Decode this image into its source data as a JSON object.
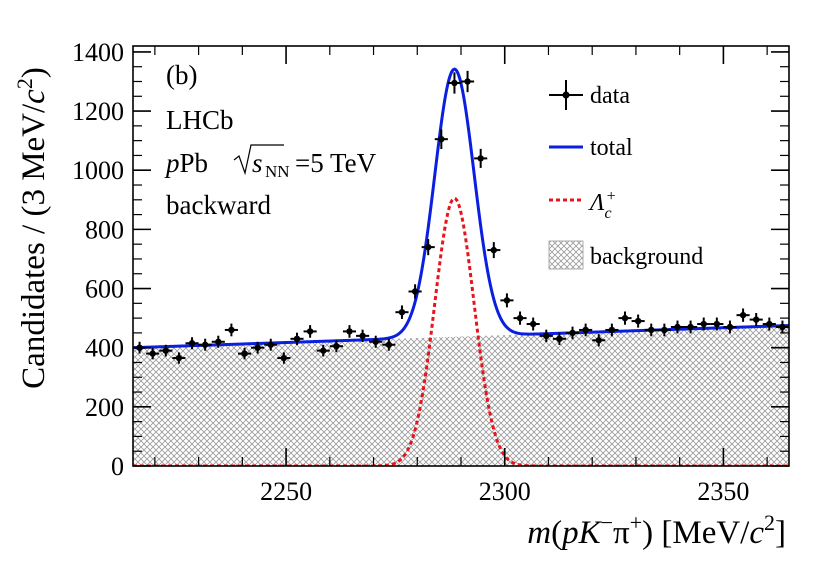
{
  "chart_data": {
    "type": "scatter",
    "panel_label": "(b)",
    "experiment": "LHCb",
    "collision": {
      "p": "p",
      "Pb": "Pb",
      "sqrt_s": "s",
      "sub": "NN",
      "energy": "=5 TeV"
    },
    "direction": "backward",
    "xlabel": "m(pK−π+) [MeV/c2]",
    "ylabel": "Candidates / (3 MeV/c2)",
    "xlim": [
      2215,
      2365
    ],
    "ylim": [
      0,
      1420
    ],
    "xticks": [
      2250,
      2300,
      2350
    ],
    "xtick_labels": [
      "2250",
      "2300",
      "2350"
    ],
    "yticks": [
      0,
      200,
      400,
      600,
      800,
      1000,
      1200,
      1400
    ],
    "ytick_labels": [
      "0",
      "200",
      "400",
      "600",
      "800",
      "1000",
      "1200",
      "1400"
    ],
    "legend": [
      {
        "key": "data",
        "label": "data"
      },
      {
        "key": "total",
        "label": "total"
      },
      {
        "key": "signal",
        "label": "Λc+"
      },
      {
        "key": "background",
        "label": "background"
      }
    ],
    "bin_width": 3,
    "series": [
      {
        "name": "data",
        "x": [
          2216.5,
          2219.5,
          2222.5,
          2225.5,
          2228.5,
          2231.5,
          2234.5,
          2237.5,
          2240.5,
          2243.5,
          2246.5,
          2249.5,
          2252.5,
          2255.5,
          2258.5,
          2261.5,
          2264.5,
          2267.5,
          2270.5,
          2273.5,
          2276.5,
          2279.5,
          2282.5,
          2285.5,
          2288.5,
          2291.5,
          2294.5,
          2297.5,
          2300.5,
          2303.5,
          2306.5,
          2309.5,
          2312.5,
          2315.5,
          2318.5,
          2321.5,
          2324.5,
          2327.5,
          2330.5,
          2333.5,
          2336.5,
          2339.5,
          2342.5,
          2345.5,
          2348.5,
          2351.5,
          2354.5,
          2357.5,
          2360.5,
          2363.5
        ],
        "y": [
          400,
          380,
          390,
          365,
          415,
          410,
          420,
          460,
          380,
          400,
          410,
          365,
          430,
          455,
          390,
          405,
          455,
          440,
          420,
          410,
          520,
          590,
          740,
          1105,
          1295,
          1300,
          1040,
          730,
          560,
          500,
          480,
          440,
          430,
          450,
          460,
          425,
          460,
          500,
          490,
          460,
          460,
          470,
          470,
          480,
          480,
          470,
          510,
          495,
          480,
          470
        ]
      },
      {
        "name": "total",
        "background_level": [
          400,
          475
        ],
        "peak_mean": 2288.5,
        "peak_sigma": 4.5,
        "peak_amplitude": 905
      },
      {
        "name": "signal",
        "mean": 2288.5,
        "sigma": 4.5,
        "amplitude": 905
      },
      {
        "name": "background",
        "at_xmin": 400,
        "at_xmax": 475
      }
    ]
  },
  "colors": {
    "total": "#0a1fe0",
    "signal": "#e8141c",
    "data": "#000000",
    "hatch": "#9a9a9a"
  }
}
